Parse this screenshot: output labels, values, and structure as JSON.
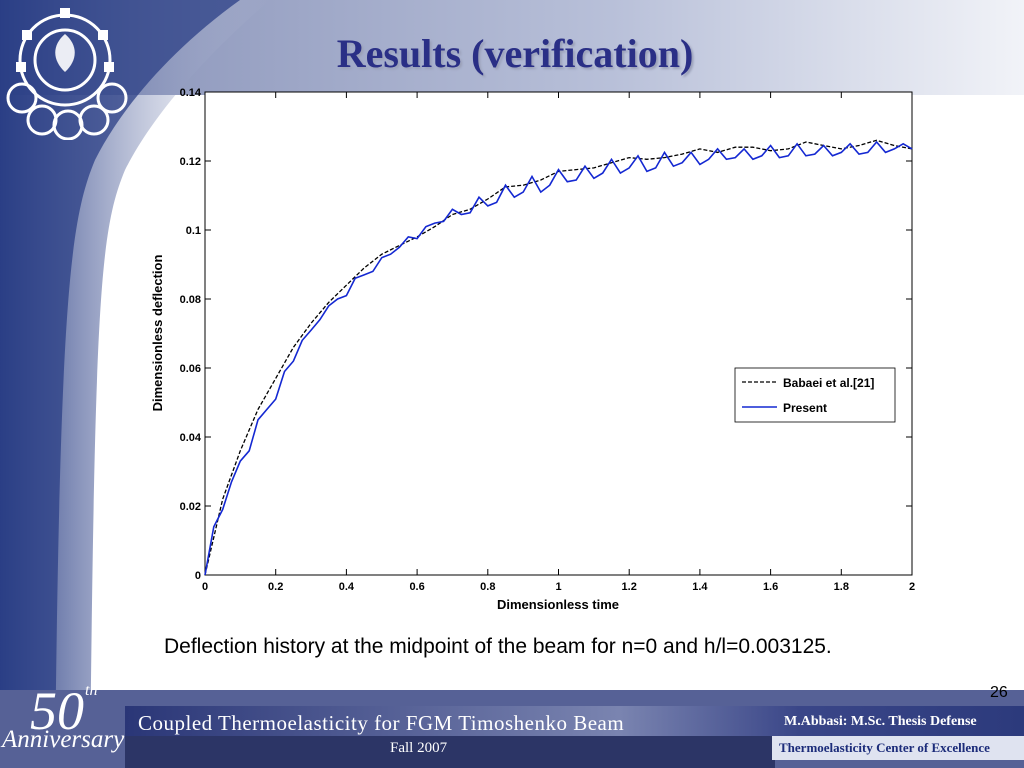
{
  "slide": {
    "title": "Results (verification)",
    "caption": "Deflection history at the midpoint of the beam for n=0 and h/l=0.003125.",
    "page_number": "26",
    "anniversary_number": "50",
    "anniversary_suffix": "th",
    "anniversary_word": "Anniversary",
    "footer_title": "Coupled Thermoelasticity for FGM Timoshenko Beam",
    "footer_date": "Fall 2007",
    "footer_author": "M.Abbasi: M.Sc. Thesis Defense",
    "footer_center": "Thermoelasticity Center of Excellence",
    "colors": {
      "title": "#2a2f86",
      "sidebar": "#2b3f85",
      "footer_bar": "#3a4688"
    }
  },
  "chart_data": {
    "type": "line",
    "xlabel": "Dimensionless time",
    "ylabel": "Dimensionless deflection",
    "xlim": [
      0,
      2
    ],
    "ylim": [
      0,
      0.14
    ],
    "xticks": [
      0,
      0.2,
      0.4,
      0.6,
      0.8,
      1,
      1.2,
      1.4,
      1.6,
      1.8,
      2
    ],
    "xtick_labels": [
      "0",
      "0.2",
      "0.4",
      "0.6",
      "0.8",
      "1",
      "1.2",
      "1.4",
      "1.6",
      "1.8",
      "2"
    ],
    "yticks": [
      0,
      0.02,
      0.04,
      0.06,
      0.08,
      0.1,
      0.12,
      0.14
    ],
    "ytick_labels": [
      "0",
      "0.02",
      "0.04",
      "0.06",
      "0.08",
      "0.1",
      "0.12",
      "0.14"
    ],
    "grid": false,
    "legend_position": "right",
    "series": [
      {
        "name": "Babaei et al.[21]",
        "color": "#000000",
        "dash": true,
        "x": [
          0,
          0.05,
          0.1,
          0.15,
          0.2,
          0.25,
          0.3,
          0.35,
          0.4,
          0.45,
          0.5,
          0.55,
          0.6,
          0.65,
          0.7,
          0.75,
          0.8,
          0.85,
          0.9,
          0.95,
          1.0,
          1.05,
          1.1,
          1.15,
          1.2,
          1.25,
          1.3,
          1.35,
          1.4,
          1.45,
          1.5,
          1.55,
          1.6,
          1.65,
          1.7,
          1.75,
          1.8,
          1.85,
          1.9,
          1.95,
          2.0
        ],
        "y": [
          0,
          0.022,
          0.036,
          0.048,
          0.057,
          0.066,
          0.073,
          0.079,
          0.084,
          0.089,
          0.093,
          0.0955,
          0.098,
          0.101,
          0.1045,
          0.106,
          0.109,
          0.1125,
          0.113,
          0.1145,
          0.117,
          0.1175,
          0.118,
          0.1195,
          0.121,
          0.1205,
          0.121,
          0.122,
          0.1235,
          0.1225,
          0.124,
          0.124,
          0.123,
          0.1235,
          0.1255,
          0.1245,
          0.1235,
          0.1245,
          0.126,
          0.1245,
          0.1235
        ]
      },
      {
        "name": "Present",
        "color": "#1428d2",
        "dash": false,
        "x": [
          0,
          0.025,
          0.05,
          0.075,
          0.1,
          0.125,
          0.15,
          0.175,
          0.2,
          0.225,
          0.25,
          0.275,
          0.3,
          0.325,
          0.35,
          0.375,
          0.4,
          0.425,
          0.45,
          0.475,
          0.5,
          0.525,
          0.55,
          0.575,
          0.6,
          0.625,
          0.65,
          0.675,
          0.7,
          0.725,
          0.75,
          0.775,
          0.8,
          0.825,
          0.85,
          0.875,
          0.9,
          0.925,
          0.95,
          0.975,
          1.0,
          1.025,
          1.05,
          1.075,
          1.1,
          1.125,
          1.15,
          1.175,
          1.2,
          1.225,
          1.25,
          1.275,
          1.3,
          1.325,
          1.35,
          1.375,
          1.4,
          1.425,
          1.45,
          1.475,
          1.5,
          1.525,
          1.55,
          1.575,
          1.6,
          1.625,
          1.65,
          1.675,
          1.7,
          1.725,
          1.75,
          1.775,
          1.8,
          1.825,
          1.85,
          1.875,
          1.9,
          1.925,
          1.95,
          1.975,
          2.0
        ],
        "y": [
          0,
          0.014,
          0.019,
          0.027,
          0.033,
          0.036,
          0.045,
          0.048,
          0.051,
          0.059,
          0.062,
          0.068,
          0.071,
          0.074,
          0.078,
          0.08,
          0.081,
          0.086,
          0.087,
          0.088,
          0.092,
          0.093,
          0.095,
          0.098,
          0.0975,
          0.101,
          0.102,
          0.1025,
          0.106,
          0.1045,
          0.105,
          0.1095,
          0.107,
          0.108,
          0.113,
          0.1095,
          0.111,
          0.1155,
          0.111,
          0.113,
          0.1175,
          0.114,
          0.1145,
          0.1185,
          0.115,
          0.1165,
          0.1205,
          0.1165,
          0.118,
          0.1215,
          0.117,
          0.118,
          0.1225,
          0.1185,
          0.1195,
          0.1225,
          0.119,
          0.1205,
          0.1235,
          0.1205,
          0.121,
          0.1235,
          0.1205,
          0.1215,
          0.1245,
          0.121,
          0.1215,
          0.125,
          0.1215,
          0.122,
          0.1245,
          0.1215,
          0.1225,
          0.125,
          0.122,
          0.1225,
          0.1255,
          0.1225,
          0.1235,
          0.125,
          0.1235
        ]
      }
    ]
  }
}
